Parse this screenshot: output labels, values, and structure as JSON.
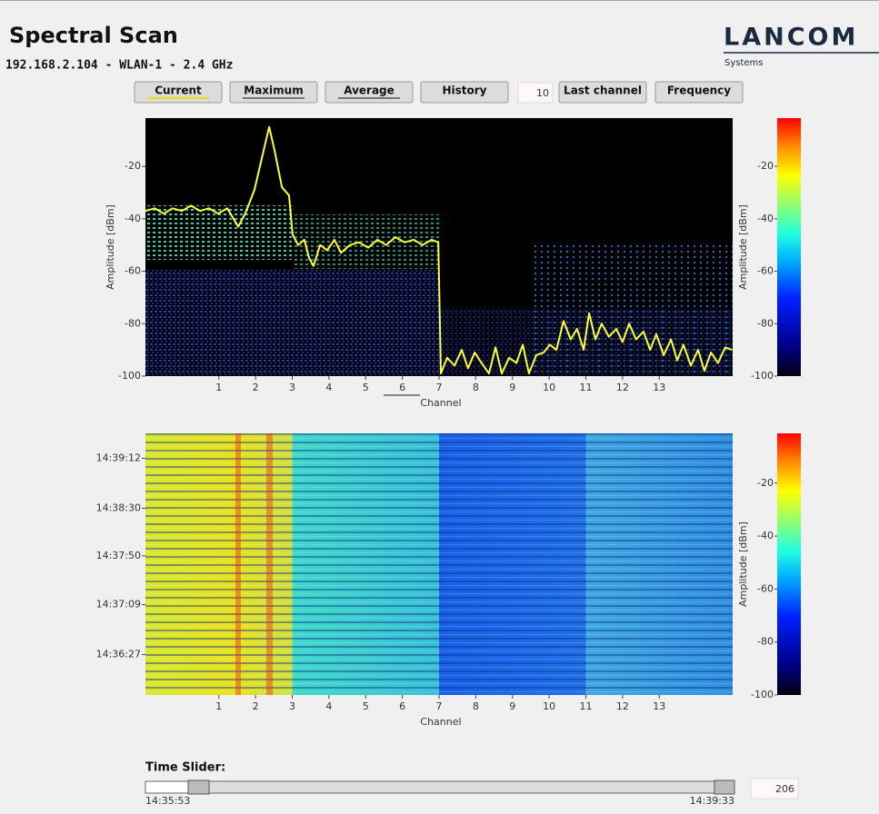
{
  "header": {
    "title": "Spectral Scan",
    "subtitle": "192.168.2.104 - WLAN-1 - 2.4 GHz",
    "logo": "LANCOM",
    "logo_sub": "Systems"
  },
  "toolbar": {
    "buttons": [
      "Current",
      "Maximum",
      "Average",
      "History"
    ],
    "history_count": 10,
    "buttons2": [
      "Last channel",
      "Frequency"
    ]
  },
  "spectrum": {
    "type": "line",
    "y_label": "Amplitude [dBm]",
    "x_label": "Channel",
    "xlim": [
      -1,
      15
    ],
    "xticks": [
      1,
      2,
      3,
      4,
      5,
      6,
      7,
      8,
      9,
      10,
      11,
      12,
      13
    ],
    "ylim": [
      -100,
      -1.6
    ],
    "yticks": [
      -20,
      -40,
      -60,
      -80,
      -100
    ],
    "series": [
      {
        "color": "#ffff33",
        "x": [
          -1.0,
          -0.75,
          -0.5,
          -0.26,
          -0.01,
          0.24,
          0.49,
          0.73,
          0.98,
          1.23,
          1.53,
          1.72,
          1.97,
          2.22,
          2.37,
          2.52,
          2.72,
          2.91,
          3.01,
          3.16,
          3.33,
          3.46,
          3.58,
          3.76,
          3.95,
          4.15,
          4.33,
          4.57,
          4.82,
          5.07,
          5.32,
          5.56,
          5.81,
          6.06,
          6.31,
          6.55,
          6.8,
          6.98,
          7.05,
          7.22,
          7.42,
          7.62,
          7.79,
          7.97,
          8.16,
          8.36,
          8.54,
          8.71,
          8.91,
          9.11,
          9.28,
          9.45,
          9.65,
          9.85,
          10.02,
          10.2,
          10.39,
          10.59,
          10.76,
          10.94,
          11.09,
          11.26,
          11.43,
          11.63,
          11.83,
          12.0,
          12.18,
          12.37,
          12.57,
          12.75,
          12.92,
          13.12,
          13.32,
          13.49,
          13.66,
          13.86,
          14.06,
          14.23,
          14.41,
          14.6,
          14.8,
          14.98
        ],
        "values": [
          -37,
          -36,
          -38,
          -36,
          -37,
          -35,
          -37,
          -36,
          -38,
          -36,
          -43,
          -38,
          -29,
          -14,
          -5,
          -14,
          -28,
          -31,
          -46,
          -50,
          -48,
          -55,
          -58,
          -50,
          -52,
          -48,
          -53,
          -50,
          -49,
          -51,
          -48,
          -50,
          -47,
          -49,
          -48,
          -50,
          -48,
          -49,
          -99,
          -93,
          -96,
          -90,
          -97,
          -91,
          -95,
          -99,
          -89,
          -99,
          -93,
          -95,
          -88,
          -99,
          -92,
          -91,
          -88,
          -90,
          -79,
          -86,
          -82,
          -90,
          -76,
          -86,
          -80,
          -85,
          -82,
          -87,
          -80,
          -86,
          -83,
          -90,
          -84,
          -92,
          -86,
          -94,
          -88,
          -96,
          -90,
          -98,
          -91,
          -95,
          -89,
          -90
        ]
      }
    ],
    "colorbar": {
      "ylim": [
        -100,
        -1.6
      ],
      "yticks": [
        -20,
        -40,
        -60,
        -80,
        -100
      ],
      "y_label": "Amplitude [dBm]"
    }
  },
  "waterfall": {
    "x_label": "Channel",
    "xlim": [
      -1,
      15
    ],
    "xticks": [
      1,
      2,
      3,
      4,
      5,
      6,
      7,
      8,
      9,
      10,
      11,
      12,
      13
    ],
    "ylim": [
      52553,
      52773
    ],
    "yticks": [
      {
        "value": 52752,
        "label": "14:39:12"
      },
      {
        "value": 52710,
        "label": "14:38:30"
      },
      {
        "value": 52670,
        "label": "14:37:50"
      },
      {
        "value": 52629,
        "label": "14:37:09"
      },
      {
        "value": 52587,
        "label": "14:36:27"
      }
    ],
    "colorbar": {
      "ylim": [
        -100,
        -1.2
      ],
      "yticks": [
        -20,
        -40,
        -60,
        -80,
        -100
      ],
      "y_label": "Amplitude [dBm]"
    }
  },
  "time_slider": {
    "label": "Time Slider:",
    "start": "14:35:53",
    "end": "14:39:33",
    "value": 206
  }
}
